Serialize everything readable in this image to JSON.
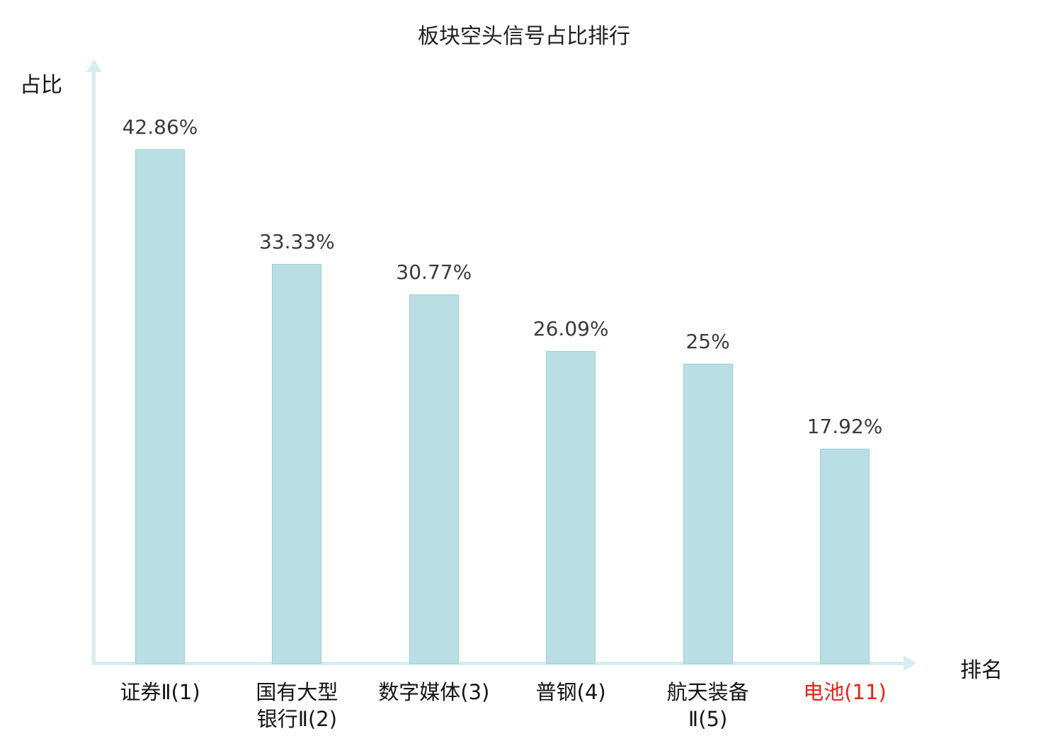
{
  "title": "板块空头信号占比排行",
  "axes": {
    "y_label": "占比",
    "x_label": "排名"
  },
  "colors": {
    "bar_fill": "#b9dee3",
    "bar_border": "#9ed0d8",
    "axis": "#d5edf0",
    "value_label": "#3a3a3a",
    "category_label": "#141414",
    "highlight_category": "#e3241a",
    "title": "#1f1f1f",
    "background": "#ffffff"
  },
  "chart_data": {
    "type": "bar",
    "title": "板块空头信号占比排行",
    "xlabel": "排名",
    "ylabel": "占比",
    "categories": [
      "证券Ⅱ(1)",
      "国有大型银行Ⅱ(2)",
      "数字媒体(3)",
      "普钢(4)",
      "航天装备Ⅱ(5)",
      "电池(11)"
    ],
    "category_lines": [
      [
        "证券Ⅱ(1)"
      ],
      [
        "国有大型",
        "银行Ⅱ(2)"
      ],
      [
        "数字媒体(3)"
      ],
      [
        "普钢(4)"
      ],
      [
        "航天装备",
        "Ⅱ(5)"
      ],
      [
        "电池(11)"
      ]
    ],
    "values": [
      42.86,
      33.33,
      30.77,
      26.09,
      25,
      17.92
    ],
    "value_labels": [
      "42.86%",
      "33.33%",
      "30.77%",
      "26.09%",
      "25%",
      "17.92%"
    ],
    "highlight_index": 5,
    "ylim": [
      0,
      50
    ],
    "grid": false,
    "legend": null
  }
}
